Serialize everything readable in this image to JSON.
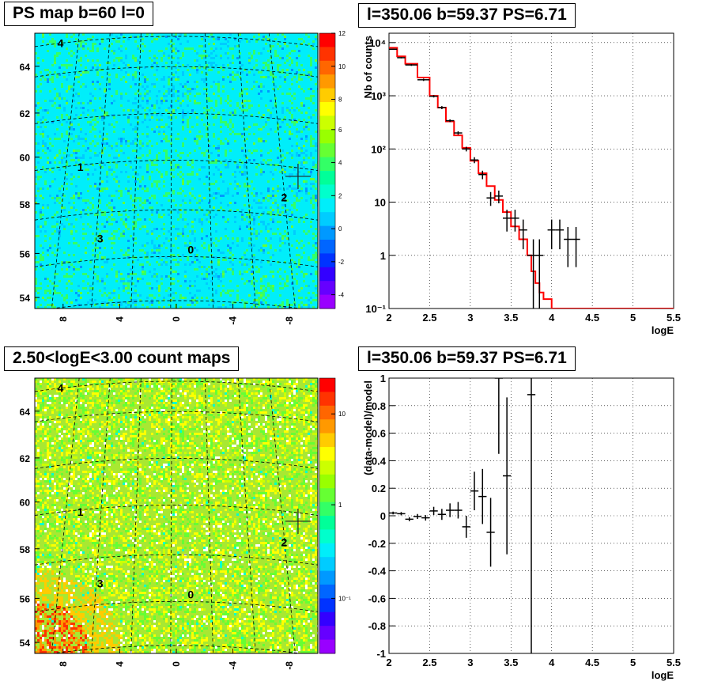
{
  "panels": {
    "tl_title": "PS map b=60 l=0",
    "tr_title": "l=350.06 b=59.37 PS=6.71",
    "bl_title": "2.50<logE<3.00 count maps",
    "br_title": "l=350.06 b=59.37 PS=6.71"
  },
  "colors": {
    "map1_background": "#00eefa",
    "map2_background": "#a8e832",
    "model_line": "#ff0000",
    "data_points": "#000000"
  },
  "chart_data": [
    {
      "type": "heatmap",
      "title": "PS map b=60 l=0",
      "x_tick_labels": [
        "8",
        "4",
        "0",
        "-4",
        "-8"
      ],
      "y_tick_labels": [
        "54",
        "56",
        "58",
        "60",
        "62",
        "64"
      ],
      "colorbar_ticks": [
        "12",
        "10",
        "8",
        "6",
        "4",
        "2",
        "0",
        "-2",
        "-4"
      ],
      "colorbar_range": [
        -5,
        12
      ],
      "grid": "galactic coordinate grid (dashed)",
      "source_labels": [
        "0",
        "1",
        "2",
        "3",
        "4"
      ],
      "marker": "cross at l=350.06 b=59.37"
    },
    {
      "type": "line",
      "title": "l=350.06 b=59.37 PS=6.71",
      "xlabel": "logE",
      "ylabel": "Nb of counts",
      "y_scale": "log",
      "xlim": [
        2,
        5.5
      ],
      "ylim": [
        0.1,
        15000
      ],
      "x_ticks": [
        "2",
        "2.5",
        "3",
        "3.5",
        "4",
        "4.5",
        "5",
        "5.5"
      ],
      "y_ticks": [
        "10^-1",
        "1",
        "10",
        "10^2",
        "10^3",
        "10^4"
      ],
      "grid": true,
      "series": [
        {
          "style": "step",
          "color": "#ff0000",
          "bin_edges": [
            2.0,
            2.1,
            2.2,
            2.35,
            2.5,
            2.6,
            2.7,
            2.8,
            2.9,
            3.0,
            3.1,
            3.2,
            3.3,
            3.4,
            3.5,
            3.6,
            3.7,
            3.75,
            3.8,
            3.85,
            3.9,
            4.0,
            5.5
          ],
          "values": [
            8000,
            5500,
            4000,
            2200,
            1000,
            600,
            330,
            180,
            105,
            60,
            35,
            20,
            11,
            6.5,
            3.5,
            2,
            1,
            0.5,
            0.3,
            0.2,
            0.15,
            0.1
          ]
        },
        {
          "style": "points_with_errors",
          "color": "#000000",
          "points": [
            {
              "x": 2.05,
              "y": 7500,
              "xerr": 0.05,
              "lo": 7300,
              "hi": 7700
            },
            {
              "x": 2.15,
              "y": 5200,
              "xerr": 0.05,
              "lo": 5050,
              "hi": 5350
            },
            {
              "x": 2.275,
              "y": 3800,
              "xerr": 0.075,
              "lo": 3650,
              "hi": 3950
            },
            {
              "x": 2.425,
              "y": 2000,
              "xerr": 0.075,
              "lo": 1900,
              "hi": 2100
            },
            {
              "x": 2.55,
              "y": 980,
              "xerr": 0.05,
              "lo": 930,
              "hi": 1030
            },
            {
              "x": 2.65,
              "y": 600,
              "xerr": 0.05,
              "lo": 560,
              "hi": 640
            },
            {
              "x": 2.75,
              "y": 340,
              "xerr": 0.05,
              "lo": 320,
              "hi": 360
            },
            {
              "x": 2.85,
              "y": 200,
              "xerr": 0.05,
              "lo": 185,
              "hi": 215
            },
            {
              "x": 2.95,
              "y": 100,
              "xerr": 0.05,
              "lo": 90,
              "hi": 110
            },
            {
              "x": 3.05,
              "y": 62,
              "xerr": 0.05,
              "lo": 54,
              "hi": 70
            },
            {
              "x": 3.15,
              "y": 33,
              "xerr": 0.05,
              "lo": 27,
              "hi": 39
            },
            {
              "x": 3.25,
              "y": 12,
              "xerr": 0.05,
              "lo": 8.5,
              "hi": 15.5
            },
            {
              "x": 3.35,
              "y": 13,
              "xerr": 0.05,
              "lo": 9.5,
              "hi": 16.5
            },
            {
              "x": 3.45,
              "y": 5,
              "xerr": 0.05,
              "lo": 2.8,
              "hi": 7.2
            },
            {
              "x": 3.55,
              "y": 5,
              "xerr": 0.05,
              "lo": 2.8,
              "hi": 7.2
            },
            {
              "x": 3.65,
              "y": 3,
              "xerr": 0.05,
              "lo": 1.3,
              "hi": 4.7
            },
            {
              "x": 3.775,
              "y": 1,
              "xerr": 0.075,
              "lo": 0.1,
              "hi": 2
            },
            {
              "x": 3.85,
              "y": 1,
              "xerr": 0.05,
              "lo": 0.1,
              "hi": 2
            },
            {
              "x": 4.0,
              "y": 3,
              "xerr": 0.05,
              "lo": 1.3,
              "hi": 4.7
            },
            {
              "x": 4.1,
              "y": 3,
              "xerr": 0.05,
              "lo": 1.3,
              "hi": 4.7
            },
            {
              "x": 4.2,
              "y": 2,
              "xerr": 0.05,
              "lo": 0.6,
              "hi": 3.4
            },
            {
              "x": 4.3,
              "y": 2,
              "xerr": 0.05,
              "lo": 0.6,
              "hi": 3.4
            }
          ]
        }
      ]
    },
    {
      "type": "heatmap",
      "title": "2.50<logE<3.00 count maps",
      "x_tick_labels": [
        "8",
        "4",
        "0",
        "-4",
        "-8"
      ],
      "y_tick_labels": [
        "54",
        "56",
        "58",
        "60",
        "62",
        "64"
      ],
      "colorbar_ticks": [
        "10",
        "1",
        "10^-1"
      ],
      "colorbar_scale": "log",
      "grid": "galactic coordinate grid (dashed)",
      "source_labels": [
        "0",
        "1",
        "2",
        "3",
        "4"
      ],
      "marker": "cross at l=350.06 b=59.37"
    },
    {
      "type": "scatter",
      "title": "l=350.06 b=59.37 PS=6.71",
      "xlabel": "logE",
      "ylabel": "(data-model)/model",
      "xlim": [
        2,
        5.5
      ],
      "ylim": [
        -1,
        1
      ],
      "x_ticks": [
        "2",
        "2.5",
        "3",
        "3.5",
        "4",
        "4.5",
        "5",
        "5.5"
      ],
      "y_ticks": [
        "-1",
        "-0.8",
        "-0.6",
        "-0.4",
        "-0.2",
        "0",
        "0.2",
        "0.4",
        "0.6",
        "0.8",
        "1"
      ],
      "grid": true,
      "points": [
        {
          "x": 2.05,
          "y": 0.02,
          "xerr": 0.05,
          "err": 0.01
        },
        {
          "x": 2.15,
          "y": 0.015,
          "xerr": 0.05,
          "err": 0.012
        },
        {
          "x": 2.25,
          "y": -0.025,
          "xerr": 0.05,
          "err": 0.015
        },
        {
          "x": 2.35,
          "y": -0.005,
          "xerr": 0.05,
          "err": 0.018
        },
        {
          "x": 2.45,
          "y": -0.015,
          "xerr": 0.05,
          "err": 0.02
        },
        {
          "x": 2.55,
          "y": 0.035,
          "xerr": 0.05,
          "err": 0.03
        },
        {
          "x": 2.65,
          "y": 0.01,
          "xerr": 0.05,
          "err": 0.04
        },
        {
          "x": 2.75,
          "y": 0.04,
          "xerr": 0.05,
          "err": 0.05
        },
        {
          "x": 2.85,
          "y": 0.04,
          "xerr": 0.05,
          "err": 0.06
        },
        {
          "x": 2.95,
          "y": -0.08,
          "xerr": 0.05,
          "err": 0.08
        },
        {
          "x": 3.05,
          "y": 0.18,
          "xerr": 0.05,
          "err": 0.14
        },
        {
          "x": 3.15,
          "y": 0.14,
          "xerr": 0.05,
          "err": 0.2
        },
        {
          "x": 3.25,
          "y": -0.12,
          "xerr": 0.05,
          "err": 0.25
        },
        {
          "x": 3.35,
          "y": 1.0,
          "xerr": 0.05,
          "err": 0.55
        },
        {
          "x": 3.45,
          "y": 0.29,
          "xerr": 0.05,
          "err": 0.57
        },
        {
          "x": 3.75,
          "y": 0.88,
          "xerr": 0.05,
          "err": 2.0
        }
      ]
    }
  ]
}
